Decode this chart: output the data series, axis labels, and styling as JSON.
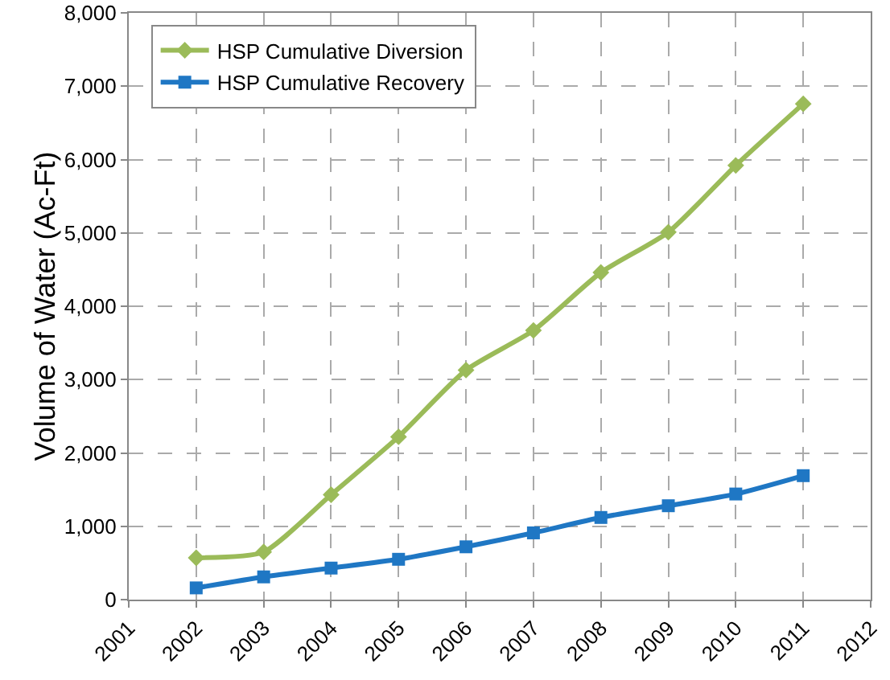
{
  "chart_data": {
    "type": "line",
    "ylabel": "Volume of Water (Ac-Ft)",
    "x": [
      2002,
      2003,
      2004,
      2005,
      2006,
      2007,
      2008,
      2009,
      2010,
      2011
    ],
    "series": [
      {
        "name": "HSP Cumulative Diversion",
        "color": "#9bbb59",
        "marker": "diamond",
        "values": [
          570,
          650,
          1430,
          2220,
          3130,
          3670,
          4460,
          5010,
          5920,
          6760
        ]
      },
      {
        "name": "HSP Cumulative Recovery",
        "color": "#1f77c4",
        "marker": "square",
        "values": [
          160,
          310,
          430,
          550,
          720,
          910,
          1120,
          1280,
          1440,
          1690
        ]
      }
    ],
    "xlim": [
      2001,
      2012
    ],
    "xticks": [
      2001,
      2002,
      2003,
      2004,
      2005,
      2006,
      2007,
      2008,
      2009,
      2010,
      2011,
      2012
    ],
    "ylim": [
      0,
      8000
    ],
    "yticks": [
      {
        "value": 0,
        "label": "0"
      },
      {
        "value": 1000,
        "label": "1,000"
      },
      {
        "value": 2000,
        "label": "2,000"
      },
      {
        "value": 3000,
        "label": "3,000"
      },
      {
        "value": 4000,
        "label": "4,000"
      },
      {
        "value": 5000,
        "label": "5,000"
      },
      {
        "value": 6000,
        "label": "6,000"
      },
      {
        "value": 7000,
        "label": "7,000"
      },
      {
        "value": 8000,
        "label": "8,000"
      }
    ],
    "grid": true,
    "legend": "top left",
    "line_style": "solid"
  }
}
